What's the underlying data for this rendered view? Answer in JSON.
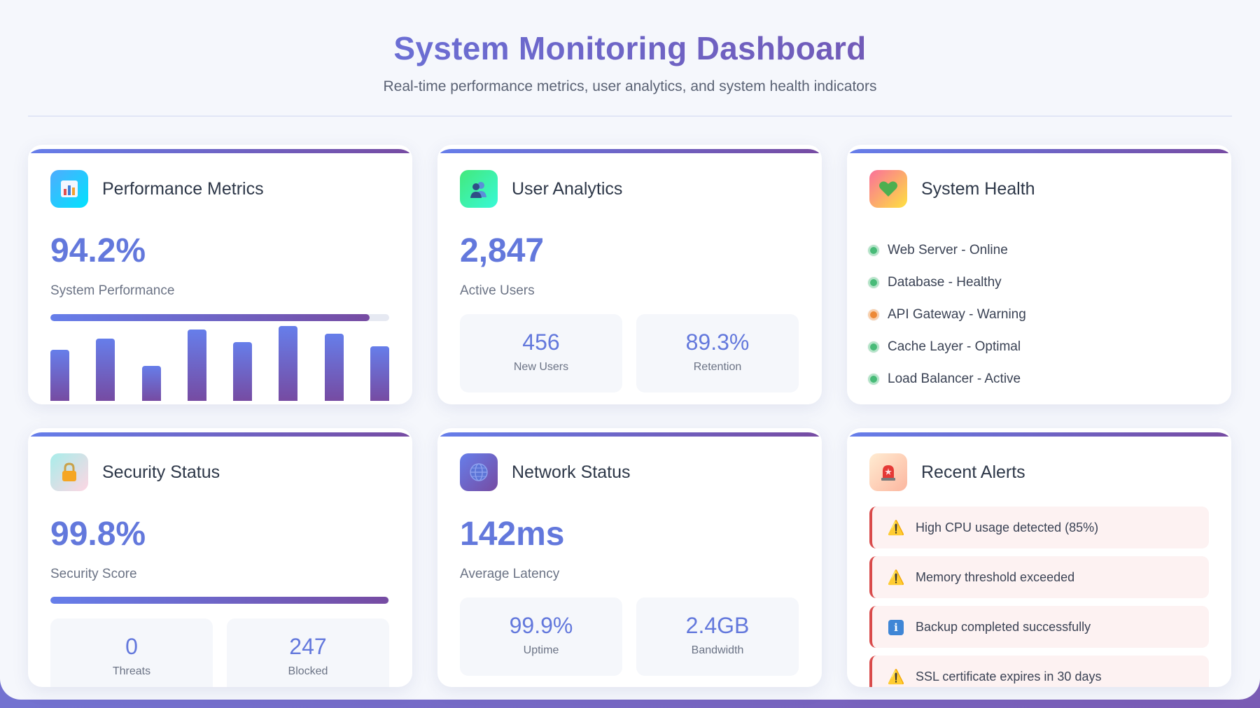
{
  "header": {
    "title": "System Monitoring Dashboard",
    "subtitle": "Real-time performance metrics, user analytics, and system health indicators"
  },
  "accent": {
    "start": "#667eea",
    "end": "#764ba2"
  },
  "performance": {
    "title": "Performance Metrics",
    "icon": "bar-chart-icon",
    "value": "94.2%",
    "label": "System Performance",
    "progress": 0.942,
    "bar_levels": [
      0.53,
      0.65,
      0.36,
      0.74,
      0.61,
      0.78,
      0.7,
      0.57
    ]
  },
  "users": {
    "title": "User Analytics",
    "icon": "users-icon",
    "value": "2,847",
    "label": "Active Users",
    "stats": [
      {
        "value": "456",
        "label": "New Users"
      },
      {
        "value": "89.3%",
        "label": "Retention"
      }
    ]
  },
  "health": {
    "title": "System Health",
    "icon": "heart-icon",
    "items": [
      {
        "label": "Web Server - Online",
        "color": "#48bb78"
      },
      {
        "label": "Database - Healthy",
        "color": "#48bb78"
      },
      {
        "label": "API Gateway - Warning",
        "color": "#ed8936"
      },
      {
        "label": "Cache Layer - Optimal",
        "color": "#48bb78"
      },
      {
        "label": "Load Balancer - Active",
        "color": "#48bb78"
      }
    ]
  },
  "security": {
    "title": "Security Status",
    "icon": "lock-icon",
    "value": "99.8%",
    "label": "Security Score",
    "progress": 0.998,
    "stats": [
      {
        "value": "0",
        "label": "Threats"
      },
      {
        "value": "247",
        "label": "Blocked"
      }
    ]
  },
  "network": {
    "title": "Network Status",
    "icon": "globe-icon",
    "value": "142ms",
    "label": "Average Latency",
    "stats": [
      {
        "value": "99.9%",
        "label": "Uptime"
      },
      {
        "value": "2.4GB",
        "label": "Bandwidth"
      }
    ]
  },
  "alerts": {
    "title": "Recent Alerts",
    "icon": "siren-icon",
    "items": [
      {
        "icon": "warning-icon",
        "text": "High CPU usage detected (85%)"
      },
      {
        "icon": "warning-icon",
        "text": "Memory threshold exceeded"
      },
      {
        "icon": "info-icon",
        "text": "Backup completed successfully"
      },
      {
        "icon": "warning-icon",
        "text": "SSL certificate expires in 30 days"
      }
    ]
  }
}
